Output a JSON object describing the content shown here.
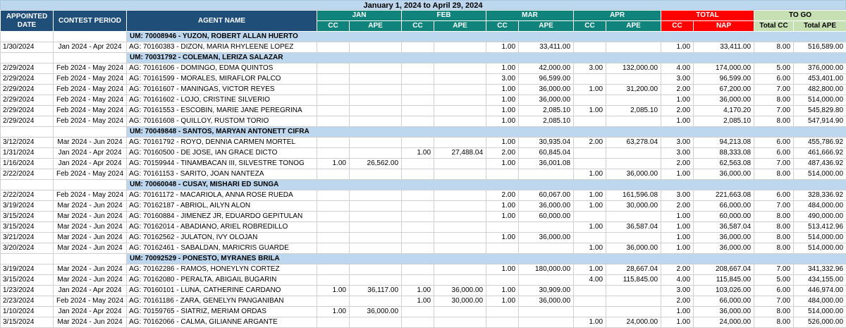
{
  "title": "January 1, 2024 to April 29, 2024",
  "columns": {
    "appointed_date": "APPOINTED DATE",
    "contest_period": "CONTEST PERIOD",
    "agent_name": "AGENT NAME",
    "months": [
      "JAN",
      "FEB",
      "MAR",
      "APR"
    ],
    "cc": "CC",
    "ape": "APE",
    "total": "TOTAL",
    "nap": "NAP",
    "to_go": "TO GO",
    "total_cc": "Total CC",
    "total_ape": "Total APE"
  },
  "colors": {
    "title_bar_bg": "#BDD7EE",
    "primary_header_bg": "#1F4E79",
    "month_header_bg": "#10847C",
    "total_header_bg": "#FE0000",
    "togo_header_bg": "#C6E0B4",
    "um_row_bg": "#BDD7EE",
    "grid_line": "#D0D0D0"
  },
  "rows": [
    {
      "type": "um",
      "label": "UM: 70008946 - YUZON, ROBERT ALLAN HUERTO"
    },
    {
      "type": "agent",
      "cells": [
        "1/30/2024",
        "Jan 2024 - Apr 2024",
        "AG: 70160383 - DIZON, MARIA RHYLEENE LOPEZ",
        "",
        "",
        "",
        "",
        "1.00",
        "33,411.00",
        "",
        "",
        "1.00",
        "33,411.00",
        "8.00",
        "516,589.00"
      ]
    },
    {
      "type": "um",
      "label": "UM: 70031792 - COLEMAN, LERIZA SALAZAR"
    },
    {
      "type": "agent",
      "cells": [
        "2/29/2024",
        "Feb 2024 - May 2024",
        "AG: 70161606 - DOMINGO, EDMA QUINTOS",
        "",
        "",
        "",
        "",
        "1.00",
        "42,000.00",
        "3.00",
        "132,000.00",
        "4.00",
        "174,000.00",
        "5.00",
        "376,000.00"
      ]
    },
    {
      "type": "agent",
      "cells": [
        "2/29/2024",
        "Feb 2024 - May 2024",
        "AG: 70161599 - MORALES, MIRAFLOR PALCO",
        "",
        "",
        "",
        "",
        "3.00",
        "96,599.00",
        "",
        "",
        "3.00",
        "96,599.00",
        "6.00",
        "453,401.00"
      ]
    },
    {
      "type": "agent",
      "cells": [
        "2/29/2024",
        "Feb 2024 - May 2024",
        "AG: 70161607 - MANINGAS, VICTOR REYES",
        "",
        "",
        "",
        "",
        "1.00",
        "36,000.00",
        "1.00",
        "31,200.00",
        "2.00",
        "67,200.00",
        "7.00",
        "482,800.00"
      ]
    },
    {
      "type": "agent",
      "cells": [
        "2/29/2024",
        "Feb 2024 - May 2024",
        "AG: 70161602 - LOJO, CRISTINE SILVERIO",
        "",
        "",
        "",
        "",
        "1.00",
        "36,000.00",
        "",
        "",
        "1.00",
        "36,000.00",
        "8.00",
        "514,000.00"
      ]
    },
    {
      "type": "agent",
      "cells": [
        "2/29/2024",
        "Feb 2024 - May 2024",
        "AG: 70161553 - ESCOBIN, MARIE JANE PEREGRINA",
        "",
        "",
        "",
        "",
        "1.00",
        "2,085.10",
        "1.00",
        "2,085.10",
        "2.00",
        "4,170.20",
        "7.00",
        "545,829.80"
      ]
    },
    {
      "type": "agent",
      "cells": [
        "2/29/2024",
        "Feb 2024 - May 2024",
        "AG: 70161608 - QUILLOY, RUSTOM TORIO",
        "",
        "",
        "",
        "",
        "1.00",
        "2,085.10",
        "",
        "",
        "1.00",
        "2,085.10",
        "8.00",
        "547,914.90"
      ]
    },
    {
      "type": "um",
      "label": "UM: 70049848 - SANTOS, MARYAN ANTONETT CIFRA"
    },
    {
      "type": "agent",
      "cells": [
        "3/12/2024",
        "Mar 2024 - Jun 2024",
        "AG: 70161792 - ROYO, DENNIA CARMEN MORTEL",
        "",
        "",
        "",
        "",
        "1.00",
        "30,935.04",
        "2.00",
        "63,278.04",
        "3.00",
        "94,213.08",
        "6.00",
        "455,786.92"
      ]
    },
    {
      "type": "agent",
      "cells": [
        "1/31/2024",
        "Jan 2024 - Apr 2024",
        "AG: 70160500 - DE JOSE, IAN GRACE DICTO",
        "",
        "",
        "1.00",
        "27,488.04",
        "2.00",
        "60,845.04",
        "",
        "",
        "3.00",
        "88,333.08",
        "6.00",
        "461,666.92"
      ]
    },
    {
      "type": "agent",
      "cells": [
        "1/16/2024",
        "Jan 2024 - Apr 2024",
        "AG: 70159944 - TINAMBACAN III, SILVESTRE TONOG",
        "1.00",
        "26,562.00",
        "",
        "",
        "1.00",
        "36,001.08",
        "",
        "",
        "2.00",
        "62,563.08",
        "7.00",
        "487,436.92"
      ]
    },
    {
      "type": "agent",
      "cells": [
        "2/22/2024",
        "Feb 2024 - May 2024",
        "AG: 70161153 - SARITO, JOAN NANTEZA",
        "",
        "",
        "",
        "",
        "",
        "",
        "1.00",
        "36,000.00",
        "1.00",
        "36,000.00",
        "8.00",
        "514,000.00"
      ]
    },
    {
      "type": "um",
      "label": "UM: 70060048 - CUSAY, MISHARI ED SUNGA"
    },
    {
      "type": "agent",
      "cells": [
        "2/22/2024",
        "Feb 2024 - May 2024",
        "AG: 70161172 - MACARIOLA, ANNA ROSE RUEDA",
        "",
        "",
        "",
        "",
        "2.00",
        "60,067.00",
        "1.00",
        "161,596.08",
        "3.00",
        "221,663.08",
        "6.00",
        "328,336.92"
      ]
    },
    {
      "type": "agent",
      "cells": [
        "3/19/2024",
        "Mar 2024 - Jun 2024",
        "AG: 70162187 - ABRIOL, AILYN ALON",
        "",
        "",
        "",
        "",
        "1.00",
        "36,000.00",
        "1.00",
        "30,000.00",
        "2.00",
        "66,000.00",
        "7.00",
        "484,000.00"
      ]
    },
    {
      "type": "agent",
      "cells": [
        "3/15/2024",
        "Mar 2024 - Jun 2024",
        "AG: 70160884 - JIMENEZ JR, EDUARDO GEPITULAN",
        "",
        "",
        "",
        "",
        "1.00",
        "60,000.00",
        "",
        "",
        "1.00",
        "60,000.00",
        "8.00",
        "490,000.00"
      ]
    },
    {
      "type": "agent",
      "cells": [
        "3/15/2024",
        "Mar 2024 - Jun 2024",
        "AG: 70162014 - ABADIANO, ARIEL ROBREDILLO",
        "",
        "",
        "",
        "",
        "",
        "",
        "1.00",
        "36,587.04",
        "1.00",
        "36,587.04",
        "8.00",
        "513,412.96"
      ]
    },
    {
      "type": "agent",
      "cells": [
        "3/21/2024",
        "Mar 2024 - Jun 2024",
        "AG: 70162562 - JULATON, IVY OLOJAN",
        "",
        "",
        "",
        "",
        "1.00",
        "36,000.00",
        "",
        "",
        "1.00",
        "36,000.00",
        "8.00",
        "514,000.00"
      ]
    },
    {
      "type": "agent",
      "cells": [
        "3/20/2024",
        "Mar 2024 - Jun 2024",
        "AG: 70162461 - SABALDAN, MARICRIS GUARDE",
        "",
        "",
        "",
        "",
        "",
        "",
        "1.00",
        "36,000.00",
        "1.00",
        "36,000.00",
        "8.00",
        "514,000.00"
      ]
    },
    {
      "type": "um",
      "label": "UM: 70092529 - PONESTO, MYRANES BRILA"
    },
    {
      "type": "agent",
      "cells": [
        "3/19/2024",
        "Mar 2024 - Jun 2024",
        "AG: 70162286 - RAMOS, HONEYLYN CORTEZ",
        "",
        "",
        "",
        "",
        "1.00",
        "180,000.00",
        "1.00",
        "28,667.04",
        "2.00",
        "208,667.04",
        "7.00",
        "341,332.96"
      ]
    },
    {
      "type": "agent",
      "cells": [
        "3/15/2024",
        "Mar 2024 - Jun 2024",
        "AG: 70162080 - PERALTA, ABIGAIL BUGARIN",
        "",
        "",
        "",
        "",
        "",
        "",
        "4.00",
        "115,845.00",
        "4.00",
        "115,845.00",
        "5.00",
        "434,155.00"
      ]
    },
    {
      "type": "agent",
      "cells": [
        "1/23/2024",
        "Jan 2024 - Apr 2024",
        "AG: 70160101 - LUNA, CATHERINE CARDANO",
        "1.00",
        "36,117.00",
        "1.00",
        "36,000.00",
        "1.00",
        "30,909.00",
        "",
        "",
        "3.00",
        "103,026.00",
        "6.00",
        "446,974.00"
      ]
    },
    {
      "type": "agent",
      "cells": [
        "2/23/2024",
        "Feb 2024 - May 2024",
        "AG: 70161186 - ZARA, GENELYN PANGANIBAN",
        "",
        "",
        "1.00",
        "30,000.00",
        "1.00",
        "36,000.00",
        "",
        "",
        "2.00",
        "66,000.00",
        "7.00",
        "484,000.00"
      ]
    },
    {
      "type": "agent",
      "cells": [
        "1/10/2024",
        "Jan 2024 - Apr 2024",
        "AG: 70159765 - SIATRIZ, MERIAM ORDAS",
        "1.00",
        "36,000.00",
        "",
        "",
        "",
        "",
        "",
        "",
        "1.00",
        "36,000.00",
        "8.00",
        "514,000.00"
      ]
    },
    {
      "type": "agent",
      "cells": [
        "3/15/2024",
        "Mar 2024 - Jun 2024",
        "AG: 70162066 - CALMA, GILIANNE ARGANTE",
        "",
        "",
        "",
        "",
        "",
        "",
        "1.00",
        "24,000.00",
        "1.00",
        "24,000.00",
        "8.00",
        "526,000.00"
      ]
    }
  ]
}
